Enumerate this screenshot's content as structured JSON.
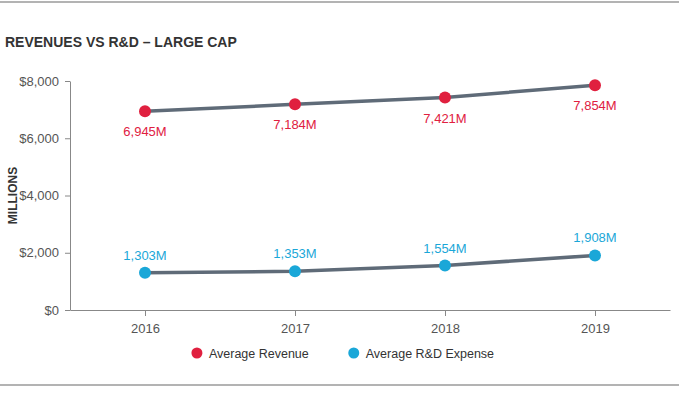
{
  "chart_data": {
    "type": "line",
    "title": "REVENUES VS R&D – LARGE CAP",
    "y_label": "MILLIONS",
    "categories": [
      "2016",
      "2017",
      "2018",
      "2019"
    ],
    "series": [
      {
        "name": "Average Revenue",
        "color": "#e0203f",
        "marker": "circle",
        "values": [
          6945,
          7184,
          7421,
          7854
        ],
        "value_labels": [
          "6,945M",
          "7,184M",
          "7,421M",
          "7,854M"
        ]
      },
      {
        "name": "Average R&D Expense",
        "color": "#1aa7d8",
        "marker": "circle",
        "values": [
          1303,
          1353,
          1554,
          1908
        ],
        "value_labels": [
          "1,303M",
          "1,353M",
          "1,554M",
          "1,908M"
        ]
      }
    ],
    "ylim": [
      0,
      8000
    ],
    "yticks": [
      {
        "value": 0,
        "label": "$0"
      },
      {
        "value": 2000,
        "label": "$2,000"
      },
      {
        "value": 4000,
        "label": "$4,000"
      },
      {
        "value": 6000,
        "label": "$6,000"
      },
      {
        "value": 8000,
        "label": "$8,000"
      }
    ],
    "grid": false,
    "data_labels": true,
    "legend": "bottom"
  }
}
